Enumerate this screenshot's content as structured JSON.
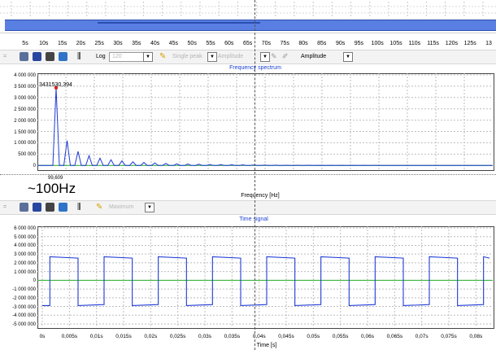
{
  "overview": {
    "time_ruler": [
      "5s",
      "10s",
      "15s",
      "20s",
      "25s",
      "30s",
      "35s",
      "40s",
      "45s",
      "50s",
      "55s",
      "60s",
      "65s",
      "70s",
      "75s",
      "80s",
      "85s",
      "90s",
      "95s",
      "100s",
      "105s",
      "110s",
      "115s",
      "120s",
      "125s",
      "13"
    ]
  },
  "spectrum_toolbar": {
    "scale_label": "Log",
    "scale_value": "120",
    "peak_mode": "Single peak",
    "amplitude_disabled": "Amplitude",
    "amplitude_label": "Amplitude"
  },
  "signal_toolbar": {
    "maximum_label": "Maximum"
  },
  "annotation": {
    "fundamental_text": "~100Hz",
    "cursor_readout": "99,609"
  },
  "colors": {
    "spectrum_line": "#1f3bd6",
    "signal_line": "#1f3bd6",
    "zero_line": "#26b02a",
    "peak_marker": "#d62020",
    "title_blue": "#1a3fd0"
  },
  "chart_data": [
    {
      "type": "line",
      "title": "Frequency spectrum",
      "xlabel": "Frequency [Hz]",
      "ylabel": "",
      "ylim": [
        -100000,
        4000000
      ],
      "yticks": [
        "4 000 000",
        "3 500 000",
        "3 000 000",
        "2 500 000",
        "2 000 000",
        "1 500 000",
        "1 000 000",
        "500 000",
        "0"
      ],
      "peak_label": "3431530,394",
      "series": [
        {
          "values": [
            3431530,
            1100000,
            620000,
            430000,
            320000,
            250000,
            200000,
            160000,
            130000,
            110000,
            90000,
            75000,
            65000,
            55000,
            45000,
            38000,
            30000,
            25000,
            20000,
            16000,
            12000,
            10000,
            8000,
            6000,
            5000,
            4000,
            3000,
            2500,
            2000,
            1500
          ]
        }
      ],
      "grid": true
    },
    {
      "type": "line",
      "title": "Time signal",
      "xlabel": "Time [s]",
      "ylabel": "",
      "ylim": [
        -5000000,
        6000000
      ],
      "yticks": [
        "6 000 000",
        "5 000 000",
        "4 000 000",
        "3 000 000",
        "2 000 000",
        "1 000 000",
        "0",
        "-1 000 000",
        "-2 000 000",
        "-3 000 000",
        "-4 000 000",
        "-5 000 000"
      ],
      "xticks": [
        "0s",
        "0,005s",
        "0,01s",
        "0,015s",
        "0,02s",
        "0,025s",
        "0,03s",
        "0,035s",
        "0,04s",
        "0,045s",
        "0,05s",
        "0,055s",
        "0,06s",
        "0,065s",
        "0,07s",
        "0,075s",
        "0,08s"
      ],
      "period_s": 0.01,
      "high": 2700000,
      "low": -2900000,
      "grid": true
    }
  ]
}
